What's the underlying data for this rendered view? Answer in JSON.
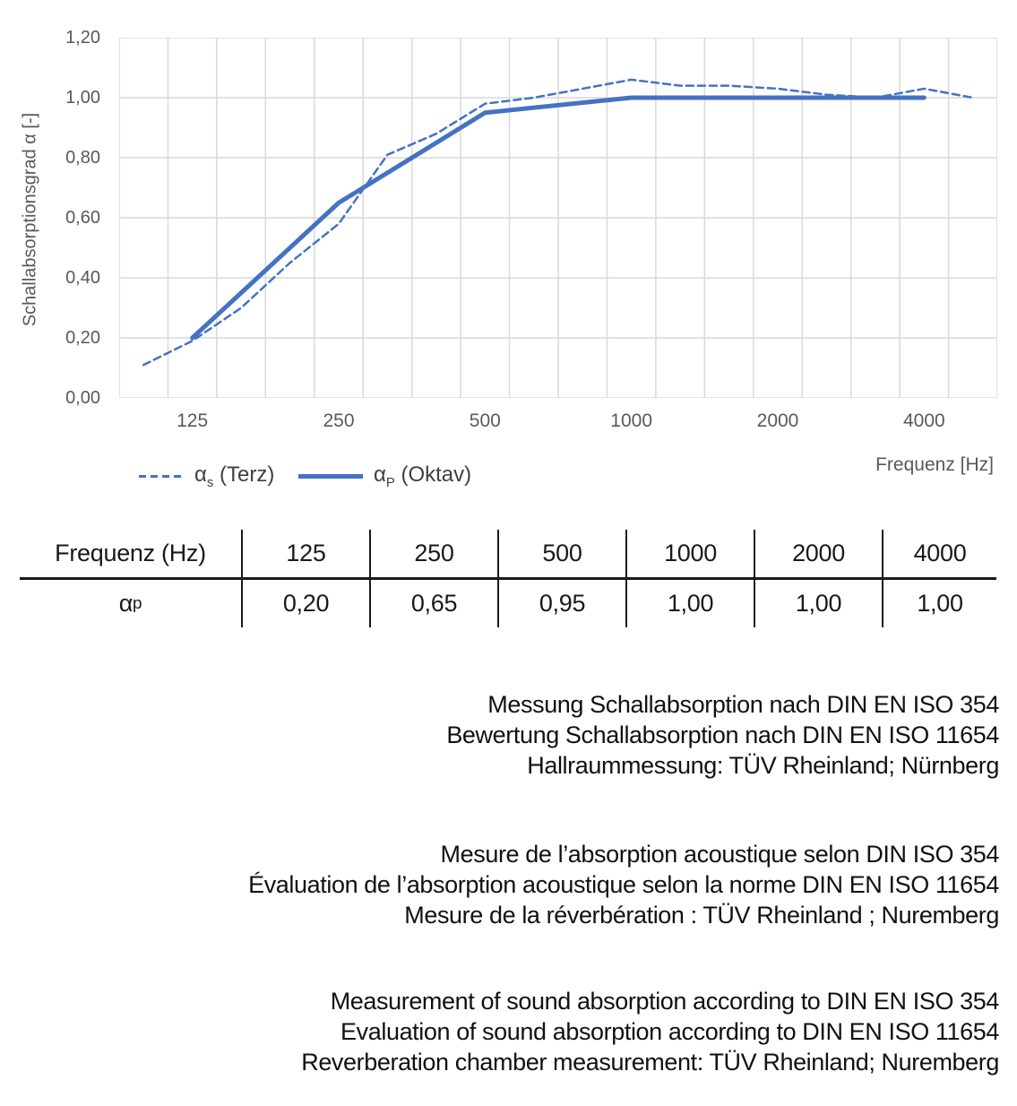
{
  "chart": {
    "y_axis_title": "Schallabsorptionsgrad α [-]",
    "x_axis_title": "Frequenz [Hz]",
    "y_ticks_top_to_bottom": [
      "1,20",
      "1,00",
      "0,80",
      "0,60",
      "0,40",
      "0,20",
      "0,00"
    ],
    "legend": {
      "terz": {
        "sym": "α",
        "sub": "s",
        "rest": " (Terz)"
      },
      "oktav": {
        "sym": "α",
        "sub": "P",
        "rest": " (Oktav)"
      }
    }
  },
  "chart_data": {
    "type": "line",
    "title": "",
    "xlabel": "Frequenz [Hz]",
    "ylabel": "Schallabsorptionsgrad α [-]",
    "ylim": [
      0,
      1.2
    ],
    "ytick_step": 0.2,
    "grid": true,
    "legend_position": "bottom-left",
    "x_axis_note": "third-octave band categories, logarithmically spaced",
    "categories": [
      100,
      125,
      160,
      200,
      250,
      315,
      400,
      500,
      630,
      800,
      1000,
      1250,
      1600,
      2000,
      2500,
      3150,
      4000,
      5000
    ],
    "x_tick_labels": [
      "125",
      "250",
      "500",
      "1000",
      "2000",
      "4000"
    ],
    "series": [
      {
        "name": "αs (Terz)",
        "style": "dashed",
        "values": [
          0.11,
          0.19,
          0.3,
          0.45,
          0.58,
          0.81,
          0.88,
          0.98,
          1.0,
          1.03,
          1.06,
          1.04,
          1.04,
          1.03,
          1.01,
          1.0,
          1.03,
          1.0
        ]
      },
      {
        "name": "αP (Oktav)",
        "style": "solid",
        "x": [
          125,
          250,
          500,
          1000,
          2000,
          4000
        ],
        "values": [
          0.2,
          0.65,
          0.95,
          1.0,
          1.0,
          1.0
        ]
      }
    ],
    "colors": {
      "line_blue": "#4472C4",
      "grid": "#D9D9D9",
      "axis_text": "#595959"
    }
  },
  "table": {
    "col0_header": "Frequenz (Hz)",
    "freq_headers": [
      "125",
      "250",
      "500",
      "1000",
      "2000",
      "4000"
    ],
    "row_label": {
      "sym": "α",
      "sub": "p"
    },
    "values": [
      "0,20",
      "0,65",
      "0,95",
      "1,00",
      "1,00",
      "1,00"
    ]
  },
  "notes": {
    "german": [
      "Messung Schallabsorption nach DIN EN ISO 354",
      "Bewertung Schallabsorption nach DIN EN ISO 11654",
      "Hallraummessung: TÜV Rheinland; Nürnberg"
    ],
    "french": [
      "Mesure de l’absorption acoustique selon DIN ISO 354",
      "Évaluation de l’absorption acoustique selon la norme DIN EN ISO 11654",
      "Mesure de la réverbération : TÜV Rheinland ; Nuremberg"
    ],
    "english": [
      "Measurement of sound absorption according to DIN EN ISO 354",
      "Evaluation of sound absorption according to DIN EN ISO 11654",
      "Reverberation chamber measurement: TÜV Rheinland; Nuremberg"
    ]
  }
}
